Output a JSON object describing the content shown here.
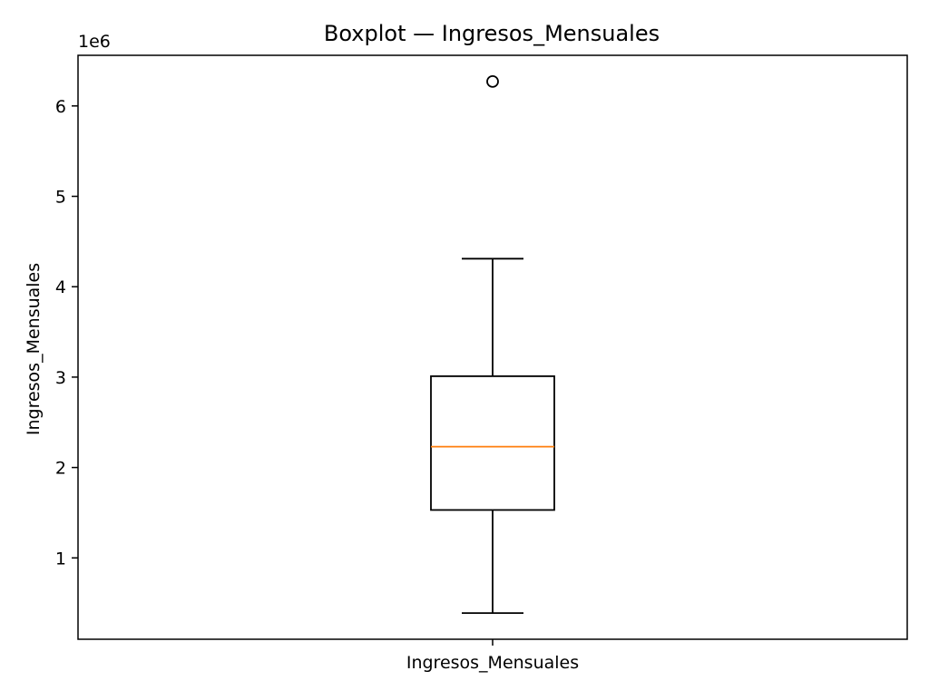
{
  "chart_data": {
    "type": "boxplot",
    "title": "Boxplot — Ingresos_Mensuales",
    "xlabel": "",
    "ylabel": "Ingresos_Mensuales",
    "y_scale_label": "1e6",
    "ylim": [
      0.1,
      6.56
    ],
    "y_ticks": [
      1,
      2,
      3,
      4,
      5,
      6
    ],
    "y_tick_labels": [
      "1",
      "2",
      "3",
      "4",
      "5",
      "6"
    ],
    "categories": [
      "Ingresos_Mensuales"
    ],
    "boxes": [
      {
        "category": "Ingresos_Mensuales",
        "whisker_low": 0.39,
        "q1": 1.53,
        "median": 2.23,
        "q3": 3.01,
        "whisker_high": 4.31,
        "outliers": [
          6.27
        ]
      }
    ],
    "grid": false,
    "legend": "none",
    "colors": {
      "box": "#000000",
      "median": "#ff7f0e",
      "whisker": "#000000",
      "outlier": "#000000"
    }
  }
}
